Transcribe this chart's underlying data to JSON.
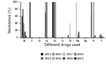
{
  "categories": [
    "A",
    "C",
    "Cf",
    "Co",
    "Fz",
    "G",
    "N",
    "Na",
    "Nx",
    "S",
    "T"
  ],
  "series": [
    {
      "label": "1993",
      "color": "#111111",
      "values": [
        60,
        100,
        0,
        100,
        100,
        0,
        5,
        0,
        0,
        65,
        0
      ]
    },
    {
      "label": "1994",
      "color": "#777777",
      "values": [
        80,
        0,
        0,
        70,
        100,
        0,
        0,
        100,
        0,
        100,
        0
      ]
    },
    {
      "label": "1995",
      "color": "#aaaaaa",
      "values": [
        40,
        0,
        0,
        100,
        100,
        0,
        0,
        0,
        0,
        0,
        5
      ]
    },
    {
      "label": "1996",
      "color": "#cccccc",
      "values": [
        12,
        0,
        0,
        100,
        100,
        0,
        40,
        0,
        0,
        0,
        10
      ]
    },
    {
      "label": "1997",
      "color": "#eeeeee",
      "values": [
        15,
        0,
        0,
        0,
        100,
        0,
        0,
        10,
        0,
        100,
        0
      ]
    },
    {
      "label": "1998",
      "color": "#555555",
      "values": [
        15,
        0,
        0,
        0,
        100,
        0,
        0,
        15,
        0,
        0,
        5
      ]
    },
    {
      "label": "1999",
      "color": "#999999",
      "values": [
        5,
        0,
        0,
        0,
        0,
        0,
        0,
        0,
        0,
        0,
        0
      ]
    },
    {
      "label": "2000",
      "color": "#333333",
      "values": [
        2,
        0,
        0,
        0,
        0,
        0,
        0,
        5,
        0,
        5,
        2
      ]
    }
  ],
  "ylabel": "Resistance (%)",
  "xlabel": "Different drugs used",
  "ylim": [
    0,
    100
  ],
  "yticks": [
    0,
    20,
    40,
    60,
    80,
    100
  ],
  "ylabel_fontsize": 3.5,
  "xlabel_fontsize": 3.5,
  "tick_fontsize": 3.0,
  "legend_fontsize": 2.8,
  "bar_width": 0.075
}
